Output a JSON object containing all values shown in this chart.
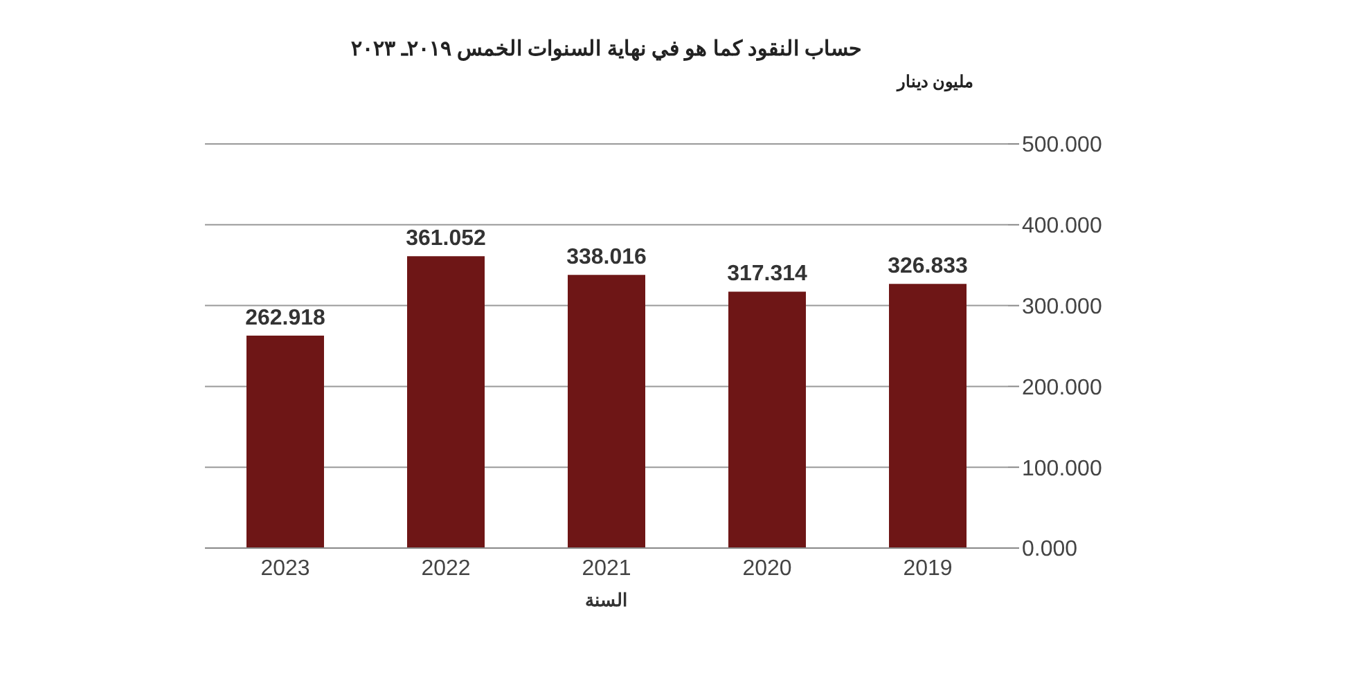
{
  "chart_data": {
    "type": "bar",
    "title": "حساب النقود  كما هو في نهاية السنوات الخمس ٢٠١٩ـ ٢٠٢٣",
    "ylabel": "مليون دينار",
    "xlabel": "السنة",
    "categories": [
      "2023",
      "2022",
      "2021",
      "2020",
      "2019"
    ],
    "series": [
      {
        "color": "#6e1616",
        "values": [
          262.918,
          361.052,
          338.016,
          317.314,
          326.833
        ]
      }
    ],
    "ylim": [
      0,
      500
    ],
    "yticks": [
      {
        "value": 0,
        "label": "0.000"
      },
      {
        "value": 100,
        "label": "100.000"
      },
      {
        "value": 200,
        "label": "200.000"
      },
      {
        "value": 300,
        "label": "300.000"
      },
      {
        "value": 400,
        "label": "400.000"
      },
      {
        "value": 500,
        "label": "500.000"
      }
    ],
    "grid": "y",
    "data_labels": true
  }
}
